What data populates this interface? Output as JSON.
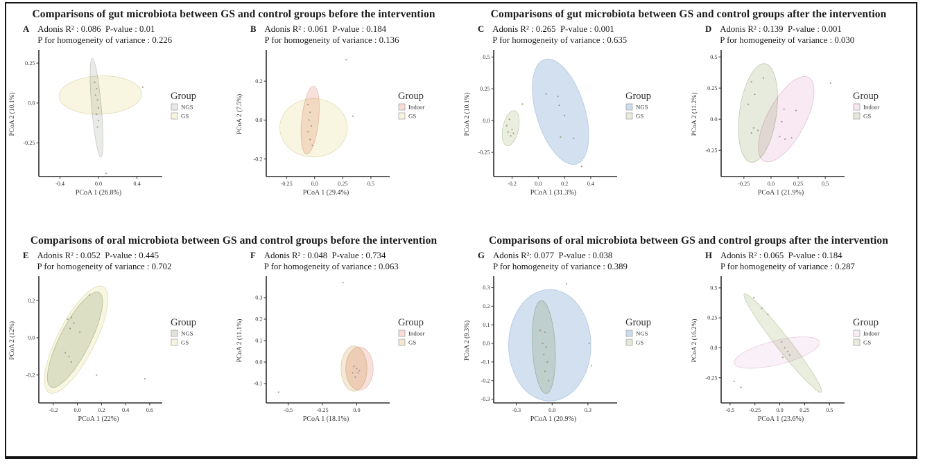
{
  "figure": {
    "legend_title": "Group"
  },
  "sections": [
    {
      "id": "gut-before",
      "title": "Comparisons of gut microbiota between GS and control groups before the intervention",
      "panels": [
        "A",
        "B"
      ]
    },
    {
      "id": "gut-after",
      "title": "Comparisons of gut microbiota between GS and control groups after the intervention",
      "panels": [
        "C",
        "D"
      ]
    },
    {
      "id": "oral-before",
      "title": "Comparisons of oral microbiota between GS and control groups before the intervention",
      "panels": [
        "E",
        "F"
      ]
    },
    {
      "id": "oral-after",
      "title": "Comparisons of oral microbiota between GS and control groups after the intervention",
      "panels": [
        "G",
        "H"
      ]
    }
  ],
  "chart_data": [
    {
      "type": "scatter",
      "panel": "A",
      "stats_line1": "Adonis R² : 0.086  P-value : 0.01",
      "stats_line2": "P for homogeneity of variance : 0.226",
      "xlabel": "PCoA 1 (26.8%)",
      "ylabel": "PCoA 2 (10.1%)",
      "xlim": [
        -0.62,
        0.62
      ],
      "ylim": [
        -0.46,
        0.32
      ],
      "xticks": [
        "-0.4",
        "0.0",
        "0.4"
      ],
      "yticks": [
        "-0.25",
        "0.0",
        "0.25"
      ],
      "legend_title": "Group",
      "groups": [
        {
          "name": "NGS",
          "fill": "#e7e9e6",
          "stroke": "#b6bcb4"
        },
        {
          "name": "GS",
          "fill": "#f7f5de",
          "stroke": "#d9d5aa"
        }
      ],
      "ellipses": [
        {
          "group": "GS",
          "cx": 0.02,
          "cy": 0.05,
          "rx": 0.43,
          "ry": 0.12,
          "rot": -2
        },
        {
          "group": "NGS",
          "cx": -0.02,
          "cy": -0.03,
          "rx": 0.05,
          "ry": 0.31,
          "rot": -5
        }
      ],
      "point_color": "#8f917f",
      "points": [
        [
          -0.04,
          0.13
        ],
        [
          -0.02,
          0.09
        ],
        [
          -0.03,
          0.05
        ],
        [
          -0.01,
          0.02
        ],
        [
          0,
          -0.03
        ],
        [
          -0.02,
          -0.07
        ],
        [
          0,
          -0.11
        ],
        [
          -0.01,
          -0.15
        ],
        [
          0.46,
          0.1
        ],
        [
          0.08,
          -0.44
        ]
      ]
    },
    {
      "type": "scatter",
      "panel": "B",
      "stats_line1": "Adonis R² : 0.061  P-value : 0.184",
      "stats_line2": "P for homogeneity of variance : 0.136",
      "xlabel": "PCoA 1 (29.4%)",
      "ylabel": "PCoA 2 (7.5%)",
      "xlim": [
        -0.43,
        0.63
      ],
      "ylim": [
        -0.29,
        0.35
      ],
      "xticks": [
        "-0.25",
        "0.0",
        "0.25",
        "0.5"
      ],
      "yticks": [
        "-0.2",
        "0.0",
        "0.2"
      ],
      "legend_title": "Group",
      "groups": [
        {
          "name": "Indoor",
          "fill": "#f8ded7",
          "stroke": "#e2b4a6"
        },
        {
          "name": "GS",
          "fill": "#f7f5de",
          "stroke": "#d9d5aa"
        }
      ],
      "ellipses": [
        {
          "group": "GS",
          "cx": -0.01,
          "cy": -0.04,
          "rx": 0.3,
          "ry": 0.15,
          "rot": 0
        },
        {
          "group": "Indoor",
          "cx": -0.04,
          "cy": 0.0,
          "rx": 0.075,
          "ry": 0.175,
          "rot": 6
        }
      ],
      "point_color": "#9a8f80",
      "points": [
        [
          -0.06,
          0.08
        ],
        [
          -0.04,
          0.04
        ],
        [
          -0.05,
          0
        ],
        [
          -0.03,
          -0.03
        ],
        [
          -0.06,
          -0.06
        ],
        [
          -0.04,
          -0.1
        ],
        [
          -0.02,
          -0.13
        ],
        [
          0.28,
          0.31
        ],
        [
          0.34,
          0.02
        ]
      ]
    },
    {
      "type": "scatter",
      "panel": "C",
      "stats_line1": "Adonis R² : 0.265  P-value : 0.001",
      "stats_line2": "P for homogeneity of variance : 0.635",
      "xlabel": "PCoA 1 (31.3%)",
      "ylabel": "PCoA 2 (10.1%)",
      "xlim": [
        -0.34,
        0.57
      ],
      "ylim": [
        -0.44,
        0.54
      ],
      "xticks": [
        "-0.2",
        "0.0",
        "0.2",
        "0.4"
      ],
      "yticks": [
        "-0.25",
        "0.0",
        "0.25",
        "0.5"
      ],
      "legend_title": "Group",
      "groups": [
        {
          "name": "NGS",
          "fill": "#cddded",
          "stroke": "#a3bedb"
        },
        {
          "name": "GS",
          "fill": "#e7ecdc",
          "stroke": "#b9c7a2"
        }
      ],
      "ellipses": [
        {
          "group": "GS",
          "cx": -0.21,
          "cy": -0.06,
          "rx": 0.06,
          "ry": 0.14,
          "rot": 12
        },
        {
          "group": "NGS",
          "cx": 0.17,
          "cy": 0.07,
          "rx": 0.185,
          "ry": 0.43,
          "rot": -17
        }
      ],
      "point_color": "#9b8a6d",
      "points": [
        [
          -0.22,
          0.01
        ],
        [
          -0.24,
          -0.04
        ],
        [
          -0.2,
          -0.07
        ],
        [
          -0.23,
          -0.09
        ],
        [
          -0.19,
          -0.1
        ],
        [
          -0.21,
          -0.12
        ],
        [
          0.06,
          0.21
        ],
        [
          0.15,
          0.19
        ],
        [
          0.16,
          0.12
        ],
        [
          0.2,
          0.04
        ],
        [
          0.17,
          -0.13
        ],
        [
          0.27,
          -0.14
        ],
        [
          0.33,
          -0.36
        ],
        [
          -0.12,
          0.13
        ]
      ]
    },
    {
      "type": "scatter",
      "panel": "D",
      "stats_line1": "Adonis R² : 0.139  P-value : 0.001",
      "stats_line2": "P for homogeneity of variance : 0.030",
      "xlabel": "PCoA 1 (21.9%)",
      "ylabel": "PCoA 2 (11.2%)",
      "xlim": [
        -0.46,
        0.64
      ],
      "ylim": [
        -0.46,
        0.54
      ],
      "xticks": [
        "-0.25",
        "0.0",
        "0.25",
        "0.5"
      ],
      "yticks": [
        "-0.25",
        "0.0",
        "0.25",
        "0.5"
      ],
      "legend_title": "Group",
      "groups": [
        {
          "name": "Indoor",
          "fill": "#f7e7f1",
          "stroke": "#dcb4cf"
        },
        {
          "name": "GS",
          "fill": "#e4e9da",
          "stroke": "#b2c19b"
        }
      ],
      "ellipses": [
        {
          "group": "GS",
          "cx": -0.12,
          "cy": 0.05,
          "rx": 0.17,
          "ry": 0.4,
          "rot": 8
        },
        {
          "group": "Indoor",
          "cx": 0.14,
          "cy": 0.0,
          "rx": 0.175,
          "ry": 0.38,
          "rot": 28
        }
      ],
      "point_color": "#8f917f",
      "points": [
        [
          -0.18,
          0.3
        ],
        [
          -0.07,
          0.33
        ],
        [
          -0.15,
          0.2
        ],
        [
          -0.21,
          0.12
        ],
        [
          -0.16,
          -0.07
        ],
        [
          -0.12,
          -0.09
        ],
        [
          -0.18,
          -0.11
        ],
        [
          0.12,
          0.08
        ],
        [
          0.23,
          0.07
        ],
        [
          0.1,
          -0.02
        ],
        [
          0.08,
          -0.14
        ],
        [
          0.13,
          -0.16
        ],
        [
          0.19,
          -0.15
        ],
        [
          0.55,
          0.29
        ]
      ]
    },
    {
      "type": "scatter",
      "panel": "E",
      "stats_line1": "Adonis R² : 0.052  P-value : 0.445",
      "stats_line2": "P for homogeneity of variance : 0.702",
      "xlabel": "PCoA 1 (22%)",
      "ylabel": "PCoA 2 (12%)",
      "xlim": [
        -0.32,
        0.67
      ],
      "ylim": [
        -0.35,
        0.32
      ],
      "xticks": [
        "-0.2",
        "0.0",
        "0.2",
        "0.4",
        "0.6"
      ],
      "yticks": [
        "-0.2",
        "0.0",
        "0.2"
      ],
      "legend_title": "Group",
      "groups": [
        {
          "name": "NGS",
          "fill": "#e0e5da",
          "stroke": "#aab8a0"
        },
        {
          "name": "GS",
          "fill": "#f7f5de",
          "stroke": "#d9d5aa"
        }
      ],
      "ellipses": [
        {
          "group": "GS",
          "cx": -0.01,
          "cy": -0.01,
          "rx": 0.155,
          "ry": 0.32,
          "rot": 27
        },
        {
          "group": "NGS",
          "cx": -0.02,
          "cy": -0.01,
          "rx": 0.125,
          "ry": 0.285,
          "rot": 27
        }
      ],
      "point_color": "#8f917f",
      "points": [
        [
          -0.08,
          0.1
        ],
        [
          -0.05,
          0.11
        ],
        [
          -0.03,
          0.08
        ],
        [
          -0.06,
          0.05
        ],
        [
          0.02,
          0.03
        ],
        [
          -0.1,
          -0.08
        ],
        [
          -0.07,
          -0.1
        ],
        [
          -0.05,
          -0.13
        ],
        [
          0.1,
          0.23
        ],
        [
          0.16,
          -0.2
        ],
        [
          0.56,
          -0.22
        ]
      ]
    },
    {
      "type": "scatter",
      "panel": "F",
      "stats_line1": "Adonis R² : 0.048  P-value : 0.734",
      "stats_line2": "P for homogeneity of variance : 0.063",
      "xlabel": "PCoA 1 (18.1%)",
      "ylabel": "PCoA 2 (11.1%)",
      "xlim": [
        -0.66,
        0.21
      ],
      "ylim": [
        -0.19,
        0.39
      ],
      "xticks": [
        "-0.5",
        "-0.25",
        "0.0"
      ],
      "yticks": [
        "-0.1",
        "0.0",
        "0.1",
        "0.2",
        "0.3"
      ],
      "legend_title": "Group",
      "groups": [
        {
          "name": "Indoor",
          "fill": "#f8ded7",
          "stroke": "#e2b4a6"
        },
        {
          "name": "GS",
          "fill": "#f3e7cf",
          "stroke": "#d8c393"
        }
      ],
      "ellipses": [
        {
          "group": "GS",
          "cx": -0.02,
          "cy": -0.03,
          "rx": 0.095,
          "ry": 0.105,
          "rot": 0
        },
        {
          "group": "Indoor",
          "cx": 0.02,
          "cy": -0.03,
          "rx": 0.1,
          "ry": 0.1,
          "rot": 0
        }
      ],
      "point_color": "#8b8fa0",
      "points": [
        [
          -0.02,
          -0.02
        ],
        [
          0,
          -0.03
        ],
        [
          -0.03,
          -0.05
        ],
        [
          0.01,
          -0.05
        ],
        [
          -0.01,
          -0.07
        ],
        [
          0.02,
          -0.04
        ],
        [
          -0.1,
          0.37
        ],
        [
          -0.57,
          -0.14
        ]
      ]
    },
    {
      "type": "scatter",
      "panel": "G",
      "stats_line1": "Adonis R²: 0.077  P-value : 0.038",
      "stats_line2": "P for homogeneity of variance : 0.389",
      "xlabel": "PCoA 1 (20.9%)",
      "ylabel": "PCoA 2 (9.3%)",
      "xlim": [
        -0.49,
        0.51
      ],
      "ylim": [
        -0.32,
        0.35
      ],
      "xticks": [
        "-0.3",
        "0.0",
        "0.3"
      ],
      "yticks": [
        "-0.3",
        "-0.2",
        "-0.1",
        "0.0",
        "0.1",
        "0.2",
        "0.3"
      ],
      "legend_title": "Group",
      "groups": [
        {
          "name": "NGS",
          "fill": "#cddded",
          "stroke": "#a3bedb"
        },
        {
          "name": "GS",
          "fill": "#e4ead8",
          "stroke": "#b2c19b"
        }
      ],
      "ellipses": [
        {
          "group": "NGS",
          "cx": -0.02,
          "cy": -0.01,
          "rx": 0.345,
          "ry": 0.3,
          "rot": 0
        },
        {
          "group": "GS",
          "cx": -0.07,
          "cy": -0.02,
          "rx": 0.095,
          "ry": 0.25,
          "rot": -3
        }
      ],
      "point_color": "#a08a72",
      "points": [
        [
          -0.1,
          0.07
        ],
        [
          -0.06,
          0.06
        ],
        [
          -0.08,
          0
        ],
        [
          -0.05,
          -0.02
        ],
        [
          -0.07,
          -0.06
        ],
        [
          -0.04,
          -0.1
        ],
        [
          -0.06,
          -0.15
        ],
        [
          -0.03,
          -0.2
        ],
        [
          0.12,
          0.32
        ],
        [
          0.31,
          0
        ],
        [
          0.33,
          -0.12
        ]
      ]
    },
    {
      "type": "scatter",
      "panel": "H",
      "stats_line1": "Adonis R² : 0.065  P-value : 0.184",
      "stats_line2": "P for homogeneity of variance : 0.287",
      "xlabel": "PCoA 1 (23.6%)",
      "ylabel": "PCoA 2 (16.2%)",
      "xlim": [
        -0.59,
        0.61
      ],
      "ylim": [
        -0.46,
        0.58
      ],
      "xticks": [
        "-0.5",
        "-0.25",
        "0.0",
        "0.25",
        "0.5"
      ],
      "yticks": [
        "-0.25",
        "0.0",
        "0.25",
        "0.5"
      ],
      "legend_title": "Group",
      "groups": [
        {
          "name": "Indoor",
          "fill": "#faeef6",
          "stroke": "#e3c3d8"
        },
        {
          "name": "GS",
          "fill": "#e7ecdc",
          "stroke": "#b9c7a2"
        }
      ],
      "ellipses": [
        {
          "group": "Indoor",
          "cx": -0.03,
          "cy": -0.04,
          "rx": 0.44,
          "ry": 0.1,
          "rot": -14
        },
        {
          "group": "GS",
          "cx": 0.03,
          "cy": 0.04,
          "rx": 0.07,
          "ry": 0.52,
          "rot": -38
        }
      ],
      "point_color": "#8f917f",
      "points": [
        [
          -0.26,
          0.42
        ],
        [
          -0.18,
          0.33
        ],
        [
          -0.12,
          0.28
        ],
        [
          0.02,
          0.05
        ],
        [
          0.05,
          0
        ],
        [
          0.08,
          -0.03
        ],
        [
          0.1,
          -0.06
        ],
        [
          0.03,
          -0.08
        ],
        [
          -0.46,
          -0.28
        ],
        [
          -0.39,
          -0.33
        ]
      ]
    }
  ]
}
